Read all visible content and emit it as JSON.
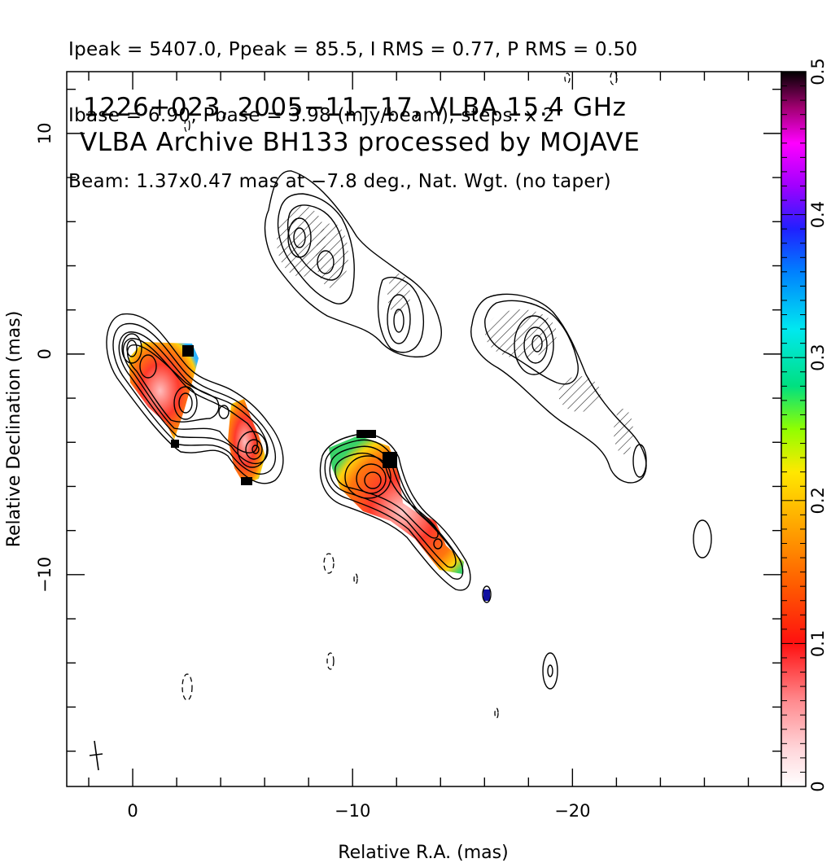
{
  "header": {
    "line1": "Ipeak = 5407.0, Ppeak = 85.5, I RMS = 0.77, P RMS = 0.50",
    "line2": "Ibase = 6.90, Pbase = 3.98 (mJy/beam), steps: x 2",
    "line3": "Beam: 1.37x0.47 mas at −7.8 deg., Nat. Wgt. (no taper)"
  },
  "chart_data": {
    "type": "heatmap",
    "title": "1226+023, 2005−11−17, VLBA 15.4 GHz",
    "subtitle": "VLBA Archive BH133 processed by MOJAVE",
    "xlabel": "Relative R.A. (mas)",
    "ylabel": "Relative Declination (mas)",
    "xlim": [
      3,
      -29.5
    ],
    "ylim": [
      -19.6,
      12.8
    ],
    "x_ticks": [
      {
        "value": 0,
        "label": "0"
      },
      {
        "value": -10,
        "label": "−10"
      },
      {
        "value": -20,
        "label": "−20"
      }
    ],
    "y_ticks": [
      {
        "value": 10,
        "label": "10"
      },
      {
        "value": 0,
        "label": "0"
      },
      {
        "value": -10,
        "label": "−10"
      }
    ],
    "colorbar": {
      "range": [
        0,
        0.5
      ],
      "ticks": [
        {
          "value": 0,
          "label": "0"
        },
        {
          "value": 0.1,
          "label": "0.1"
        },
        {
          "value": 0.2,
          "label": "0.2"
        },
        {
          "value": 0.3,
          "label": "0.3"
        },
        {
          "value": 0.4,
          "label": "0.4"
        },
        {
          "value": 0.5,
          "label": "0.5"
        }
      ]
    },
    "components": [
      {
        "name": "stokes-i-epoch1",
        "x": 0,
        "y": 0
      },
      {
        "name": "stokes-i-epoch1-knot",
        "x": -2.6,
        "y": -2.5
      },
      {
        "name": "stokes-i-epoch1-knot2",
        "x": -5.5,
        "y": -4.5
      },
      {
        "name": "total-intensity-panel",
        "x": -11.0,
        "y": -6.0
      },
      {
        "name": "polarized-panel-a",
        "x": -8.7,
        "y": 5.0
      },
      {
        "name": "polarized-panel-b",
        "x": -18.5,
        "y": 0.2
      }
    ],
    "grid": false
  }
}
